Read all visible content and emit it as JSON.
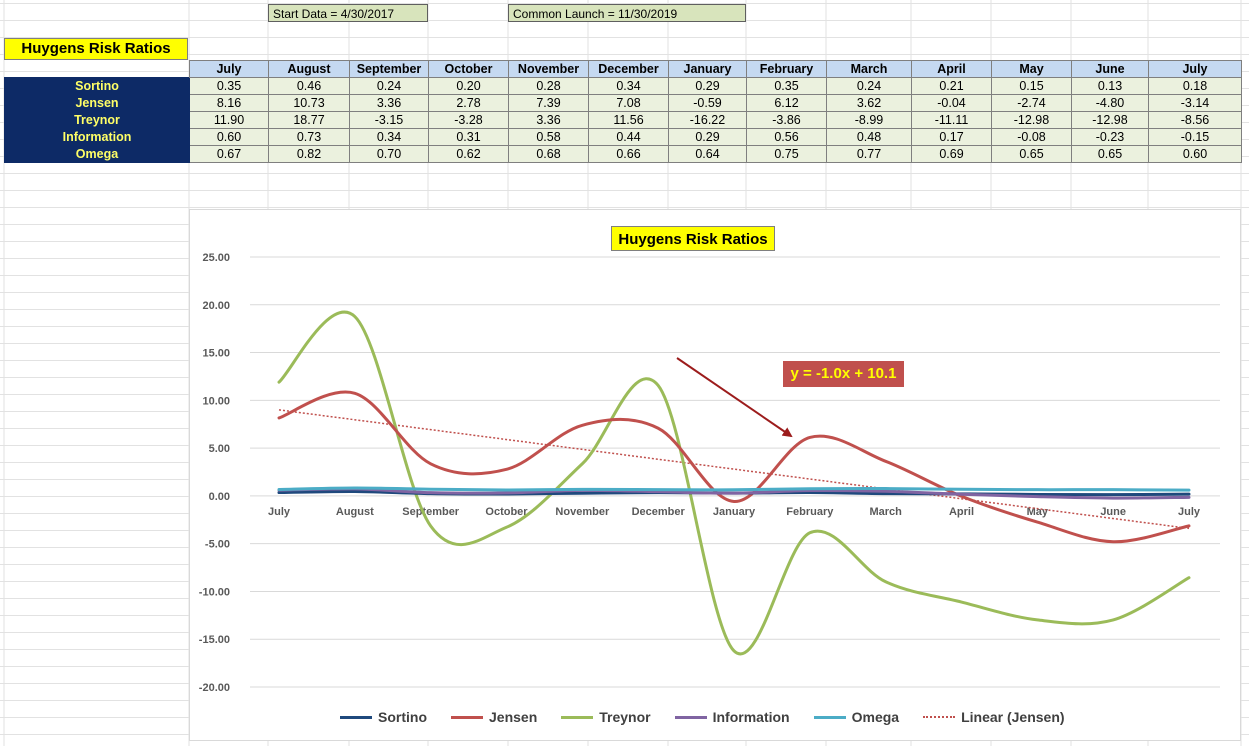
{
  "sheet": {
    "start_note": "Start Data = 4/30/2017",
    "launch_note": "Common Launch = 11/30/2019",
    "table_title": "Huygens Risk Ratios"
  },
  "table": {
    "months": [
      "July",
      "August",
      "September",
      "October",
      "November",
      "December",
      "January",
      "February",
      "March",
      "April",
      "May",
      "June",
      "July"
    ],
    "rows": [
      {
        "name": "Sortino",
        "values": [
          "0.35",
          "0.46",
          "0.24",
          "0.20",
          "0.28",
          "0.34",
          "0.29",
          "0.35",
          "0.24",
          "0.21",
          "0.15",
          "0.13",
          "0.18"
        ]
      },
      {
        "name": "Jensen",
        "values": [
          "8.16",
          "10.73",
          "3.36",
          "2.78",
          "7.39",
          "7.08",
          "-0.59",
          "6.12",
          "3.62",
          "-0.04",
          "-2.74",
          "-4.80",
          "-3.14"
        ]
      },
      {
        "name": "Treynor",
        "values": [
          "11.90",
          "18.77",
          "-3.15",
          "-3.28",
          "3.36",
          "11.56",
          "-16.22",
          "-3.86",
          "-8.99",
          "-11.11",
          "-12.98",
          "-12.98",
          "-8.56"
        ]
      },
      {
        "name": "Information",
        "values": [
          "0.60",
          "0.73",
          "0.34",
          "0.31",
          "0.58",
          "0.44",
          "0.29",
          "0.56",
          "0.48",
          "0.17",
          "-0.08",
          "-0.23",
          "-0.15"
        ]
      },
      {
        "name": "Omega",
        "values": [
          "0.67",
          "0.82",
          "0.70",
          "0.62",
          "0.68",
          "0.66",
          "0.64",
          "0.75",
          "0.77",
          "0.69",
          "0.65",
          "0.65",
          "0.60"
        ]
      }
    ]
  },
  "chart_data": {
    "type": "line",
    "title": "Huygens Risk Ratios",
    "categories": [
      "July",
      "August",
      "September",
      "October",
      "November",
      "December",
      "January",
      "February",
      "March",
      "April",
      "May",
      "June",
      "July"
    ],
    "ylim": [
      -20,
      25
    ],
    "yticks": [
      "25.00",
      "20.00",
      "15.00",
      "10.00",
      "5.00",
      "0.00",
      "-5.00",
      "-10.00",
      "-15.00",
      "-20.00"
    ],
    "grid": true,
    "legend_position": "bottom",
    "series": [
      {
        "name": "Sortino",
        "color": "#1f497d",
        "values": [
          0.35,
          0.46,
          0.24,
          0.2,
          0.28,
          0.34,
          0.29,
          0.35,
          0.24,
          0.21,
          0.15,
          0.13,
          0.18
        ]
      },
      {
        "name": "Jensen",
        "color": "#c0504d",
        "values": [
          8.16,
          10.73,
          3.36,
          2.78,
          7.39,
          7.08,
          -0.59,
          6.12,
          3.62,
          -0.04,
          -2.74,
          -4.8,
          -3.14
        ]
      },
      {
        "name": "Treynor",
        "color": "#9bbb59",
        "values": [
          11.9,
          18.77,
          -3.15,
          -3.28,
          3.36,
          11.56,
          -16.22,
          -3.86,
          -8.99,
          -11.11,
          -12.98,
          -12.98,
          -8.56
        ]
      },
      {
        "name": "Information",
        "color": "#8064a2",
        "values": [
          0.6,
          0.73,
          0.34,
          0.31,
          0.58,
          0.44,
          0.29,
          0.56,
          0.48,
          0.17,
          -0.08,
          -0.23,
          -0.15
        ]
      },
      {
        "name": "Omega",
        "color": "#4bacc6",
        "values": [
          0.67,
          0.82,
          0.7,
          0.62,
          0.68,
          0.66,
          0.64,
          0.75,
          0.77,
          0.69,
          0.65,
          0.65,
          0.6
        ]
      }
    ],
    "trendline": {
      "name": "Linear (Jensen)",
      "equation": "y = -1.0x + 10.1",
      "color": "#c0504d",
      "start_value": 9.0,
      "end_value": -3.4
    },
    "annotation_arrow_color": "#9c1c1c"
  }
}
